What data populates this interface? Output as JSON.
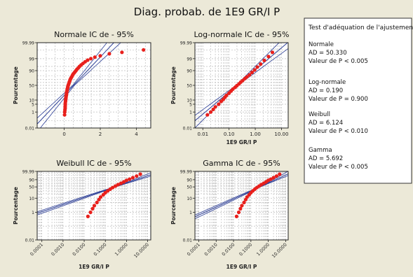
{
  "title": "Diag. probab. de 1E9 GR/I P",
  "colors": {
    "background": "#ece9d8",
    "plot_area": "#ffffff",
    "points": "#e8201c",
    "fit_lines": "#2c3e96",
    "grid": "#bdbdbd"
  },
  "chart_data": [
    {
      "type": "scatter",
      "title": "Normale IC de - 95%",
      "xlabel": "",
      "ylabel": "Pourcentage",
      "x_ticks": [
        "0",
        "2",
        "4"
      ],
      "x_tick_values": [
        0,
        2,
        4
      ],
      "xlim": [
        -1.5,
        4.8
      ],
      "x_scale": "linear",
      "y_ticks": [
        "0.01",
        "1",
        "5",
        "10",
        "50",
        "90",
        "99",
        "99.99"
      ],
      "y_scale": "normal-probability",
      "ylim": [
        0.01,
        99.99
      ],
      "points_x": [
        0.02,
        0.03,
        0.04,
        0.05,
        0.05,
        0.06,
        0.06,
        0.07,
        0.08,
        0.09,
        0.1,
        0.11,
        0.12,
        0.13,
        0.14,
        0.16,
        0.17,
        0.19,
        0.2,
        0.22,
        0.24,
        0.26,
        0.28,
        0.31,
        0.33,
        0.36,
        0.39,
        0.43,
        0.46,
        0.5,
        0.55,
        0.6,
        0.65,
        0.71,
        0.78,
        0.85,
        0.94,
        1.04,
        1.16,
        1.3,
        1.48,
        1.7,
        2.0,
        2.5,
        3.2,
        4.4
      ],
      "points_p": [
        0.5,
        1.0,
        1.6,
        2.3,
        3.2,
        4.5,
        6.0,
        8.0,
        10,
        12,
        15,
        18,
        21,
        25,
        29,
        33,
        37,
        41,
        45,
        49,
        53,
        57,
        61,
        65,
        69,
        72,
        75,
        78,
        81,
        84,
        86,
        88,
        90,
        92,
        93.5,
        95,
        96.2,
        97.2,
        98,
        98.6,
        99.0,
        99.3,
        99.5,
        99.7,
        99.8,
        99.9
      ],
      "fit": {
        "mean": 0.52,
        "sd": 0.6
      },
      "statistics": {
        "AD": 50.33,
        "p_value": "< 0.005"
      }
    },
    {
      "type": "scatter",
      "title": "Log-normale IC de - 95%",
      "xlabel": "1E9 GR/I P",
      "ylabel": "Pourcentage",
      "x_ticks": [
        "0.01",
        "0.10",
        "1.00",
        "10.00"
      ],
      "x_tick_values": [
        0.01,
        0.1,
        1,
        10
      ],
      "xlim": [
        0.005,
        18
      ],
      "x_scale": "log",
      "y_ticks": [
        "0.01",
        "1",
        "5",
        "10",
        "50",
        "90",
        "99",
        "99.99"
      ],
      "y_scale": "normal-probability",
      "ylim": [
        0.01,
        99.99
      ],
      "points_x": [
        0.015,
        0.02,
        0.025,
        0.03,
        0.04,
        0.05,
        0.06,
        0.07,
        0.08,
        0.1,
        0.12,
        0.14,
        0.17,
        0.2,
        0.24,
        0.28,
        0.33,
        0.4,
        0.48,
        0.6,
        0.75,
        0.95,
        1.2,
        1.6,
        2.2,
        3.2,
        4.5
      ],
      "points_p": [
        0.5,
        1.0,
        1.8,
        3,
        5,
        8,
        11,
        15,
        19,
        25,
        31,
        37,
        43,
        49,
        55,
        61,
        66,
        72,
        77,
        82,
        87,
        91,
        94.5,
        96.8,
        98.5,
        99.4,
        99.8
      ],
      "fit": {
        "median": 0.2,
        "log10_sd": 0.52
      },
      "statistics": {
        "AD": 0.19,
        "p_value": "0.900"
      }
    },
    {
      "type": "scatter",
      "title": "Weibull IC de - 95%",
      "xlabel": "1E9 GR/I P",
      "ylabel": "Pourcentage",
      "x_ticks": [
        "0.0001",
        "0.0010",
        "0.0100",
        "0.1000",
        "1.0000",
        "10.0000"
      ],
      "x_tick_values": [
        0.0001,
        0.001,
        0.01,
        0.1,
        1,
        10
      ],
      "xlim": [
        6e-05,
        14
      ],
      "x_scale": "log",
      "y_ticks": [
        "0.01",
        "1",
        "10",
        "50",
        "90",
        "99.99"
      ],
      "y_scale": "weibull-probability",
      "ylim": [
        0.01,
        99.99
      ],
      "points_x": [
        0.015,
        0.02,
        0.025,
        0.03,
        0.04,
        0.05,
        0.06,
        0.08,
        0.1,
        0.13,
        0.17,
        0.22,
        0.3,
        0.4,
        0.55,
        0.75,
        1.0,
        1.4,
        2.0,
        3.0,
        4.5
      ],
      "points_p": [
        0.5,
        1.0,
        1.8,
        3,
        5,
        8,
        12,
        17,
        23,
        30,
        38,
        46,
        55,
        64,
        72,
        80,
        87,
        92,
        96,
        98.5,
        99.7
      ],
      "fit": {
        "shape": 0.52,
        "scale": 0.58
      },
      "statistics": {
        "AD": 6.124,
        "p_value": "< 0.010"
      }
    },
    {
      "type": "scatter",
      "title": "Gamma IC de - 95%",
      "xlabel": "1E9 GR/I P",
      "ylabel": "Pourcentage",
      "x_ticks": [
        "0.0001",
        "0.0010",
        "0.0100",
        "0.1000",
        "1.0000",
        "10.0000"
      ],
      "x_tick_values": [
        0.0001,
        0.001,
        0.01,
        0.1,
        1,
        10
      ],
      "xlim": [
        6e-05,
        14
      ],
      "x_scale": "log",
      "y_ticks": [
        "0.01",
        "1",
        "10",
        "50",
        "90",
        "99.99"
      ],
      "y_scale": "weibull-probability",
      "ylim": [
        0.01,
        99.99
      ],
      "points_x": [
        0.015,
        0.02,
        0.025,
        0.03,
        0.04,
        0.05,
        0.06,
        0.08,
        0.1,
        0.13,
        0.17,
        0.22,
        0.3,
        0.4,
        0.55,
        0.75,
        1.0,
        1.4,
        2.0,
        3.0,
        4.5
      ],
      "points_p": [
        0.5,
        1.0,
        1.8,
        3,
        5,
        8,
        12,
        17,
        23,
        30,
        38,
        46,
        55,
        64,
        72,
        80,
        87,
        92,
        96,
        98.5,
        99.7
      ],
      "fit": {
        "shape": 0.58,
        "scale": 0.62
      },
      "statistics": {
        "AD": 5.692,
        "p_value": "< 0.005"
      }
    }
  ],
  "gof_panel": {
    "title": "Test d'adéquation de l'ajustement",
    "entries": [
      {
        "name": "Normale",
        "ad": "AD = 50.330",
        "p": "Valeur de P < 0.005"
      },
      {
        "name": "Log-normale",
        "ad": "AD = 0.190",
        "p": "Valeur de P = 0.900"
      },
      {
        "name": "Weibull",
        "ad": "AD = 6.124",
        "p": "Valeur de P < 0.010"
      },
      {
        "name": "Gamma",
        "ad": "AD = 5.692",
        "p": "Valeur de P < 0.005"
      }
    ]
  }
}
